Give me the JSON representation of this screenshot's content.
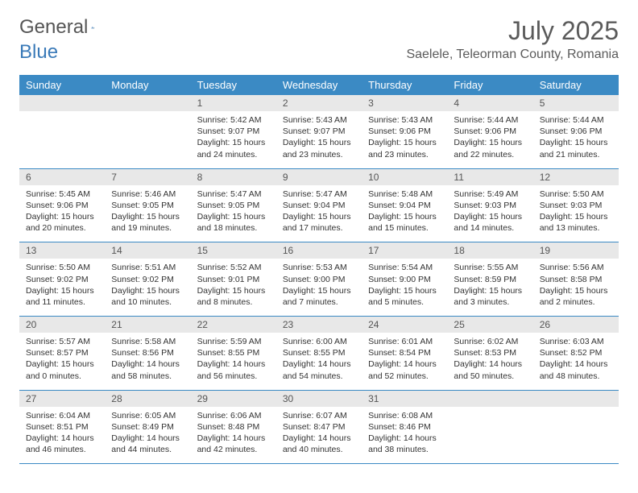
{
  "brand": {
    "part1": "General",
    "part2": "Blue"
  },
  "title": "July 2025",
  "location": "Saelele, Teleorman County, Romania",
  "colors": {
    "header_bg": "#3b8ac4",
    "header_text": "#ffffff",
    "daynum_bg": "#e8e8e8",
    "rule": "#3b8ac4",
    "logo_blue": "#3a7ab8"
  },
  "weekdays": [
    "Sunday",
    "Monday",
    "Tuesday",
    "Wednesday",
    "Thursday",
    "Friday",
    "Saturday"
  ],
  "weeks": [
    [
      null,
      null,
      {
        "n": "1",
        "sr": "5:42 AM",
        "ss": "9:07 PM",
        "dl": "15 hours and 24 minutes."
      },
      {
        "n": "2",
        "sr": "5:43 AM",
        "ss": "9:07 PM",
        "dl": "15 hours and 23 minutes."
      },
      {
        "n": "3",
        "sr": "5:43 AM",
        "ss": "9:06 PM",
        "dl": "15 hours and 23 minutes."
      },
      {
        "n": "4",
        "sr": "5:44 AM",
        "ss": "9:06 PM",
        "dl": "15 hours and 22 minutes."
      },
      {
        "n": "5",
        "sr": "5:44 AM",
        "ss": "9:06 PM",
        "dl": "15 hours and 21 minutes."
      }
    ],
    [
      {
        "n": "6",
        "sr": "5:45 AM",
        "ss": "9:06 PM",
        "dl": "15 hours and 20 minutes."
      },
      {
        "n": "7",
        "sr": "5:46 AM",
        "ss": "9:05 PM",
        "dl": "15 hours and 19 minutes."
      },
      {
        "n": "8",
        "sr": "5:47 AM",
        "ss": "9:05 PM",
        "dl": "15 hours and 18 minutes."
      },
      {
        "n": "9",
        "sr": "5:47 AM",
        "ss": "9:04 PM",
        "dl": "15 hours and 17 minutes."
      },
      {
        "n": "10",
        "sr": "5:48 AM",
        "ss": "9:04 PM",
        "dl": "15 hours and 15 minutes."
      },
      {
        "n": "11",
        "sr": "5:49 AM",
        "ss": "9:03 PM",
        "dl": "15 hours and 14 minutes."
      },
      {
        "n": "12",
        "sr": "5:50 AM",
        "ss": "9:03 PM",
        "dl": "15 hours and 13 minutes."
      }
    ],
    [
      {
        "n": "13",
        "sr": "5:50 AM",
        "ss": "9:02 PM",
        "dl": "15 hours and 11 minutes."
      },
      {
        "n": "14",
        "sr": "5:51 AM",
        "ss": "9:02 PM",
        "dl": "15 hours and 10 minutes."
      },
      {
        "n": "15",
        "sr": "5:52 AM",
        "ss": "9:01 PM",
        "dl": "15 hours and 8 minutes."
      },
      {
        "n": "16",
        "sr": "5:53 AM",
        "ss": "9:00 PM",
        "dl": "15 hours and 7 minutes."
      },
      {
        "n": "17",
        "sr": "5:54 AM",
        "ss": "9:00 PM",
        "dl": "15 hours and 5 minutes."
      },
      {
        "n": "18",
        "sr": "5:55 AM",
        "ss": "8:59 PM",
        "dl": "15 hours and 3 minutes."
      },
      {
        "n": "19",
        "sr": "5:56 AM",
        "ss": "8:58 PM",
        "dl": "15 hours and 2 minutes."
      }
    ],
    [
      {
        "n": "20",
        "sr": "5:57 AM",
        "ss": "8:57 PM",
        "dl": "15 hours and 0 minutes."
      },
      {
        "n": "21",
        "sr": "5:58 AM",
        "ss": "8:56 PM",
        "dl": "14 hours and 58 minutes."
      },
      {
        "n": "22",
        "sr": "5:59 AM",
        "ss": "8:55 PM",
        "dl": "14 hours and 56 minutes."
      },
      {
        "n": "23",
        "sr": "6:00 AM",
        "ss": "8:55 PM",
        "dl": "14 hours and 54 minutes."
      },
      {
        "n": "24",
        "sr": "6:01 AM",
        "ss": "8:54 PM",
        "dl": "14 hours and 52 minutes."
      },
      {
        "n": "25",
        "sr": "6:02 AM",
        "ss": "8:53 PM",
        "dl": "14 hours and 50 minutes."
      },
      {
        "n": "26",
        "sr": "6:03 AM",
        "ss": "8:52 PM",
        "dl": "14 hours and 48 minutes."
      }
    ],
    [
      {
        "n": "27",
        "sr": "6:04 AM",
        "ss": "8:51 PM",
        "dl": "14 hours and 46 minutes."
      },
      {
        "n": "28",
        "sr": "6:05 AM",
        "ss": "8:49 PM",
        "dl": "14 hours and 44 minutes."
      },
      {
        "n": "29",
        "sr": "6:06 AM",
        "ss": "8:48 PM",
        "dl": "14 hours and 42 minutes."
      },
      {
        "n": "30",
        "sr": "6:07 AM",
        "ss": "8:47 PM",
        "dl": "14 hours and 40 minutes."
      },
      {
        "n": "31",
        "sr": "6:08 AM",
        "ss": "8:46 PM",
        "dl": "14 hours and 38 minutes."
      },
      null,
      null
    ]
  ],
  "labels": {
    "sunrise": "Sunrise:",
    "sunset": "Sunset:",
    "daylight": "Daylight:"
  }
}
